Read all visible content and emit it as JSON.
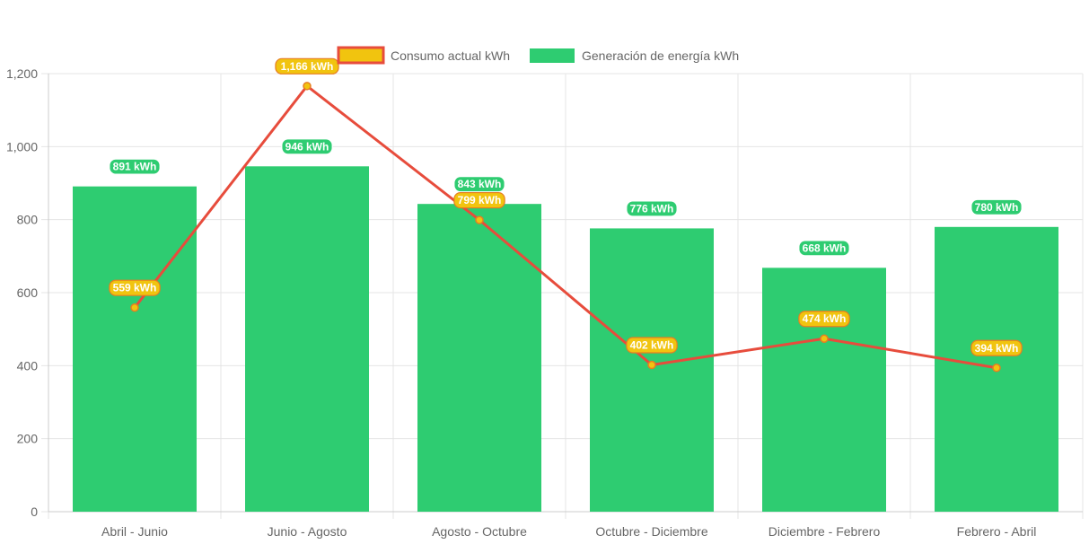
{
  "chart_data": {
    "type": "bar",
    "categories": [
      "Abril - Junio",
      "Junio - Agosto",
      "Agosto - Octubre",
      "Octubre - Diciembre",
      "Diciembre - Febrero",
      "Febrero - Abril"
    ],
    "series": [
      {
        "name": "Consumo actual kWh",
        "type": "line",
        "values": [
          559,
          1166,
          799,
          402,
          474,
          394
        ],
        "labels": [
          "559 kWh",
          "1,166 kWh",
          "799 kWh",
          "402 kWh",
          "474 kWh",
          "394 kWh"
        ],
        "color": "#e74c3c",
        "fill_color": "#f1c40f",
        "label_color": "#f1c40f",
        "label_border": "#e67e22"
      },
      {
        "name": "Generación de energía kWh",
        "type": "bar",
        "values": [
          891,
          946,
          843,
          776,
          668,
          780
        ],
        "labels": [
          "891 kWh",
          "946 kWh",
          "843 kWh",
          "776 kWh",
          "668 kWh",
          "780 kWh"
        ],
        "color": "#2ecc71",
        "label_color": "#2ecc71",
        "label_border": "#ffffff"
      }
    ],
    "ylim": [
      0,
      1200
    ],
    "yticks": [
      0,
      200,
      400,
      600,
      800,
      1000,
      1200
    ],
    "ytick_labels": [
      "0",
      "200",
      "400",
      "600",
      "800",
      "1,000",
      "1,200"
    ],
    "grid": true,
    "legend_position": "top-center",
    "title": "",
    "xlabel": "",
    "ylabel": ""
  }
}
